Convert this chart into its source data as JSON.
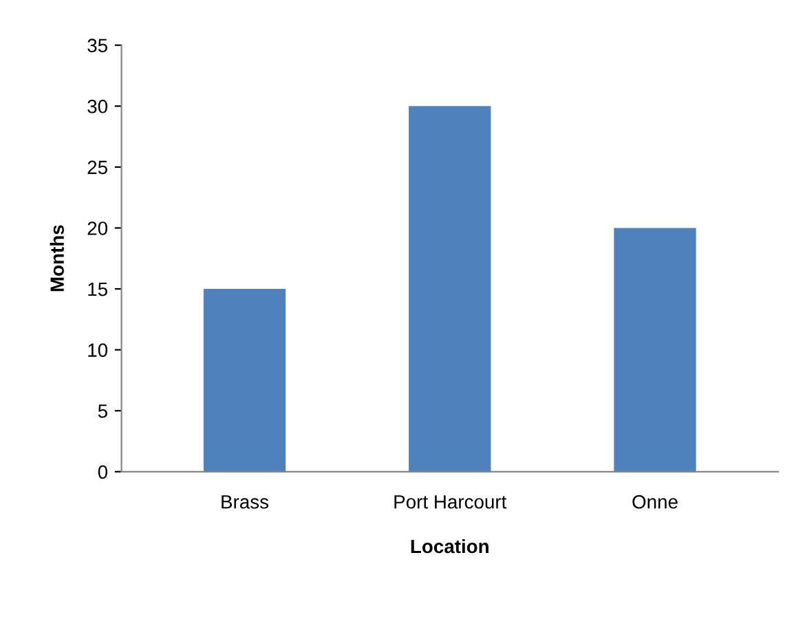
{
  "chart_data": {
    "type": "bar",
    "xlabel": "Location",
    "ylabel": "Months",
    "categories": [
      "Brass",
      "Port Harcourt",
      "Onne"
    ],
    "values": [
      15,
      30,
      20
    ],
    "color": "#4f81bd",
    "ylim": [
      0,
      35
    ],
    "yticks": [
      0,
      5,
      10,
      15,
      20,
      25,
      30,
      35
    ],
    "grid": false
  }
}
